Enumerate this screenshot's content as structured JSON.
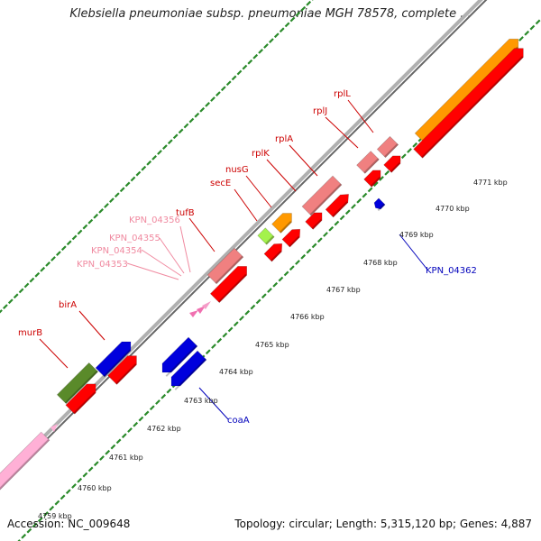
{
  "title": "Klebsiella pneumoniae subsp. pneumoniae MGH 78578, complete ...",
  "footer": {
    "accession": "Accession: NC_009648",
    "stats": "Topology: circular; Length: 5,315,120 bp; Genes: 4,887"
  },
  "colors": {
    "gene_red": "#ff0000",
    "gene_pink": "#f08080",
    "gene_orange": "#ff9900",
    "gene_blue": "#0000dd",
    "gene_olive": "#5a8a2a",
    "gene_lime": "#a4f24c",
    "gene_lightpink": "#ffb0d6",
    "label_red": "#cc0000",
    "label_pink": "#f08aa0",
    "label_blue": "#0000bb",
    "tick_green": "#2a8a2a",
    "backbone_gray": "#999999"
  },
  "scale_labels": [
    "4759 kbp",
    "4760 kbp",
    "4761 kbp",
    "4762 kbp",
    "4763 kbp",
    "4764 kbp",
    "4765 kbp",
    "4766 kbp",
    "4767 kbp",
    "4768 kbp",
    "4769 kbp",
    "4770 kbp",
    "4771 kbp"
  ],
  "gene_labels": [
    {
      "text": "murB",
      "color": "label_red"
    },
    {
      "text": "birA",
      "color": "label_red"
    },
    {
      "text": "tufB",
      "color": "label_red"
    },
    {
      "text": "secE",
      "color": "label_red"
    },
    {
      "text": "nusG",
      "color": "label_red"
    },
    {
      "text": "rplK",
      "color": "label_red"
    },
    {
      "text": "rplA",
      "color": "label_red"
    },
    {
      "text": "rplJ",
      "color": "label_red"
    },
    {
      "text": "rplL",
      "color": "label_red"
    },
    {
      "text": "KPN_04353",
      "color": "label_pink"
    },
    {
      "text": "KPN_04354",
      "color": "label_pink"
    },
    {
      "text": "KPN_04355",
      "color": "label_pink"
    },
    {
      "text": "KPN_04356",
      "color": "label_pink"
    },
    {
      "text": "coaA",
      "color": "label_blue"
    },
    {
      "text": "KPN_04362",
      "color": "label_blue"
    }
  ]
}
